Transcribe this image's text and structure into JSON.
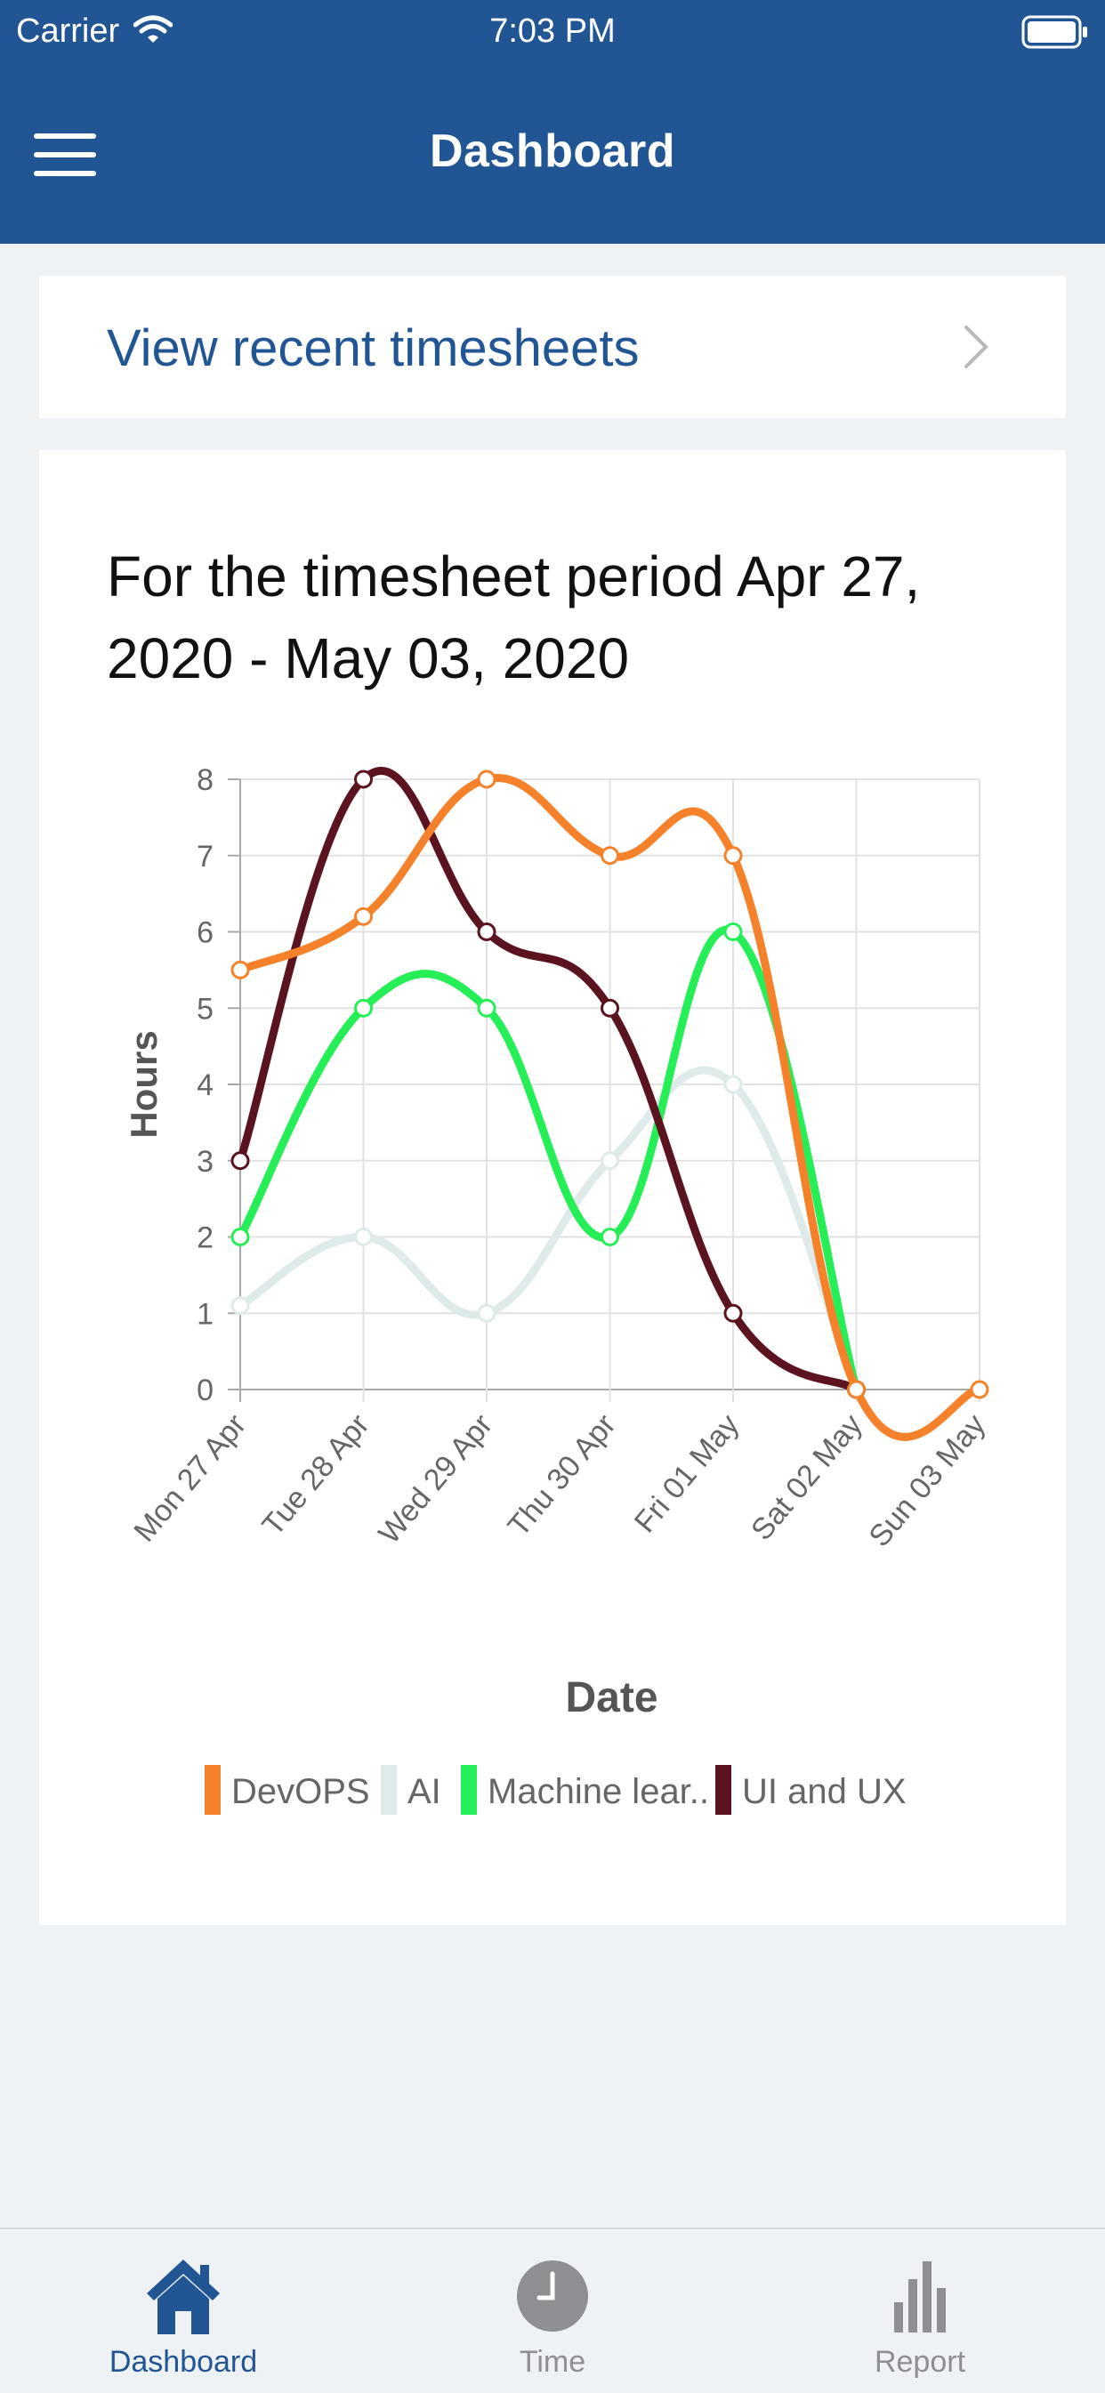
{
  "status_bar": {
    "carrier": "Carrier",
    "time": "7:03 PM"
  },
  "header": {
    "title": "Dashboard",
    "menu_icon": "hamburger-icon"
  },
  "recent": {
    "label": "View recent timesheets",
    "icon": "chevron-right-icon"
  },
  "period": {
    "text": "For the timesheet period Apr 27, 2020 - May 03, 2020"
  },
  "chart_data": {
    "type": "line",
    "categories": [
      "Mon 27 Apr",
      "Tue 28 Apr",
      "Wed 29 Apr",
      "Thu 30 Apr",
      "Fri 01 May",
      "Sat 02 May",
      "Sun 03 May"
    ],
    "ylabel": "Hours",
    "xlabel": "Date",
    "ylim": [
      0,
      8
    ],
    "yticks": [
      "0",
      "1",
      "2",
      "3",
      "4",
      "5",
      "6",
      "7",
      "8"
    ],
    "grid": true,
    "legend_position": "bottom",
    "series": [
      {
        "name": "DevOPS",
        "color": "#f5822b",
        "values": [
          5.5,
          6.2,
          8,
          7,
          7,
          0,
          0
        ]
      },
      {
        "name": "AI",
        "color": "#dfeaea",
        "values": [
          1.1,
          2,
          1,
          3,
          4,
          0,
          null
        ]
      },
      {
        "name": "Machine lear..",
        "color": "#26ee57",
        "values": [
          2,
          5,
          5,
          2,
          6,
          0,
          null
        ]
      },
      {
        "name": "UI and UX",
        "color": "#5b1320",
        "values": [
          3,
          8,
          6,
          5,
          1,
          0,
          null
        ]
      }
    ]
  },
  "tabbar": {
    "items": [
      {
        "label": "Dashboard",
        "icon": "home-icon",
        "active": true,
        "color": "#215594"
      },
      {
        "label": "Time",
        "icon": "clock-icon",
        "active": false,
        "color": "#8e8e93"
      },
      {
        "label": "Report",
        "icon": "bar-chart-icon",
        "active": false,
        "color": "#8e8e93"
      }
    ]
  }
}
